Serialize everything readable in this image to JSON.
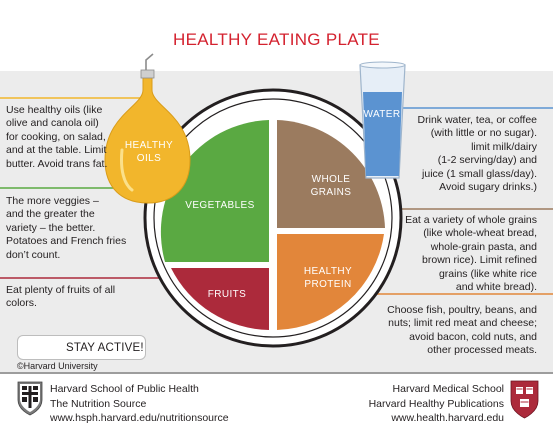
{
  "title": "HEALTHY EATING PLATE",
  "plate": {
    "vegetables": "VEGETABLES",
    "whole_grains_line1": "WHOLE",
    "whole_grains_line2": "GRAINS",
    "fruits": "FRUITS",
    "protein_line1": "HEALTHY",
    "protein_line2": "PROTEIN"
  },
  "bottle": {
    "line1": "HEALTHY",
    "line2": "OILS"
  },
  "glass": {
    "label": "WATER"
  },
  "notes": {
    "oils": [
      "Use healthy oils (like",
      "olive and canola oil)",
      "for cooking, on salad,",
      "and at the table. Limit",
      "butter. Avoid trans fat."
    ],
    "veggies": [
      "The more veggies –",
      "and the greater the",
      "variety – the better.",
      "Potatoes and French fries",
      "don’t count."
    ],
    "fruits": [
      "Eat plenty of fruits of all",
      "colors."
    ],
    "water": [
      "Drink water, tea, or coffee",
      "(with little or no sugar).",
      "limit milk/dairy",
      "(1-2 serving/day) and",
      "juice (1 small glass/day).",
      "Avoid sugary drinks.)"
    ],
    "grains": [
      "Eat a variety of whole grains",
      "(like whole-wheat bread,",
      "whole-grain pasta, and",
      "brown rice). Limit refined",
      "grains (like white rice",
      "and white bread)."
    ],
    "protein": [
      "Choose fish, poultry, beans, and",
      "nuts; limit red meat and cheese;",
      "avoid bacon, cold nuts, and",
      "other processed meats."
    ]
  },
  "stay_active": "STAY ACTIVE!",
  "copyright": "©Harvard University",
  "footer": {
    "left": [
      "Harvard School of Public Health",
      "The Nutrition Source",
      "www.hsph.harvard.edu/nutritionsource"
    ],
    "right": [
      "Harvard Medical School",
      "Harvard Healthy Publications",
      "www.health.harvard.edu"
    ]
  },
  "colors": {
    "title": "#d4222f",
    "vegetables": "#5aa942",
    "whole_grains": "#9b7b5f",
    "fruits": "#ac2a3b",
    "protein": "#e2863a",
    "oil": "#f2b62c",
    "water": "#5b93d1"
  }
}
